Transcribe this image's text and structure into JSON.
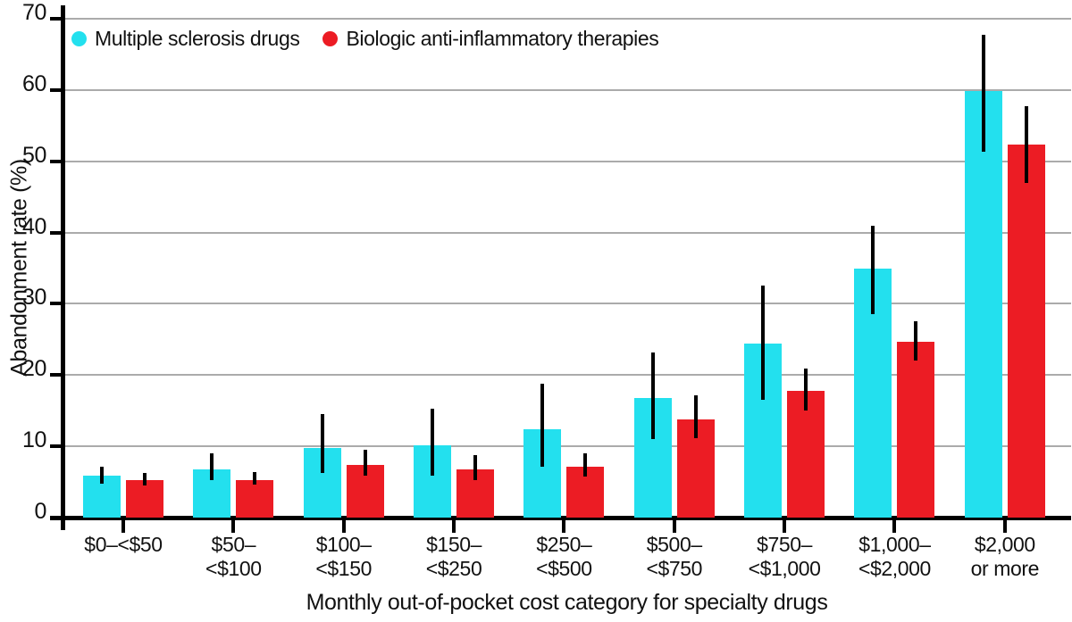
{
  "chart_data": {
    "type": "bar",
    "title": "",
    "xlabel": "Monthly out-of-pocket cost category for specialty drugs",
    "ylabel": "Abandonment rate (%)",
    "ylim": [
      0,
      70
    ],
    "yticks": [
      0,
      10,
      20,
      30,
      40,
      50,
      60,
      70
    ],
    "grid": "horizontal",
    "legend_position": "top-left-inside",
    "error_bars": true,
    "colors": {
      "series1": "#23E0EE",
      "series2": "#EC1C24",
      "gridline": "#ABABAB",
      "axis": "#000000",
      "text": "#111111",
      "background": "#FFFFFF"
    },
    "categories": [
      {
        "lines": [
          "$0–<$50"
        ]
      },
      {
        "lines": [
          "$50–",
          "<$100"
        ]
      },
      {
        "lines": [
          "$100–",
          "<$150"
        ]
      },
      {
        "lines": [
          "$150–",
          "<$250"
        ]
      },
      {
        "lines": [
          "$250–",
          "<$500"
        ]
      },
      {
        "lines": [
          "$500–",
          "<$750"
        ]
      },
      {
        "lines": [
          "$750–",
          "<$1,000"
        ]
      },
      {
        "lines": [
          "$1,000–",
          "<$2,000"
        ]
      },
      {
        "lines": [
          "$2,000",
          "or more"
        ]
      }
    ],
    "series": [
      {
        "name": "Multiple sclerosis drugs",
        "color": "#23E0EE",
        "values": [
          5.9,
          6.7,
          9.8,
          10.1,
          12.4,
          16.8,
          24.4,
          35.0,
          59.8
        ],
        "ci_low": [
          4.8,
          5.2,
          6.2,
          5.9,
          7.1,
          11.0,
          16.5,
          28.6,
          51.3
        ],
        "ci_high": [
          7.2,
          9.0,
          14.5,
          15.3,
          18.8,
          23.2,
          32.5,
          41.0,
          67.8
        ]
      },
      {
        "name": "Biologic anti-inflammatory therapies",
        "color": "#EC1C24",
        "values": [
          5.2,
          5.3,
          7.4,
          6.8,
          7.1,
          13.8,
          17.8,
          24.7,
          52.4
        ],
        "ci_low": [
          4.5,
          4.6,
          5.9,
          5.2,
          5.8,
          11.2,
          15.0,
          22.1,
          47.0
        ],
        "ci_high": [
          6.2,
          6.4,
          9.5,
          8.8,
          9.0,
          17.2,
          20.9,
          27.6,
          57.7
        ]
      }
    ]
  }
}
